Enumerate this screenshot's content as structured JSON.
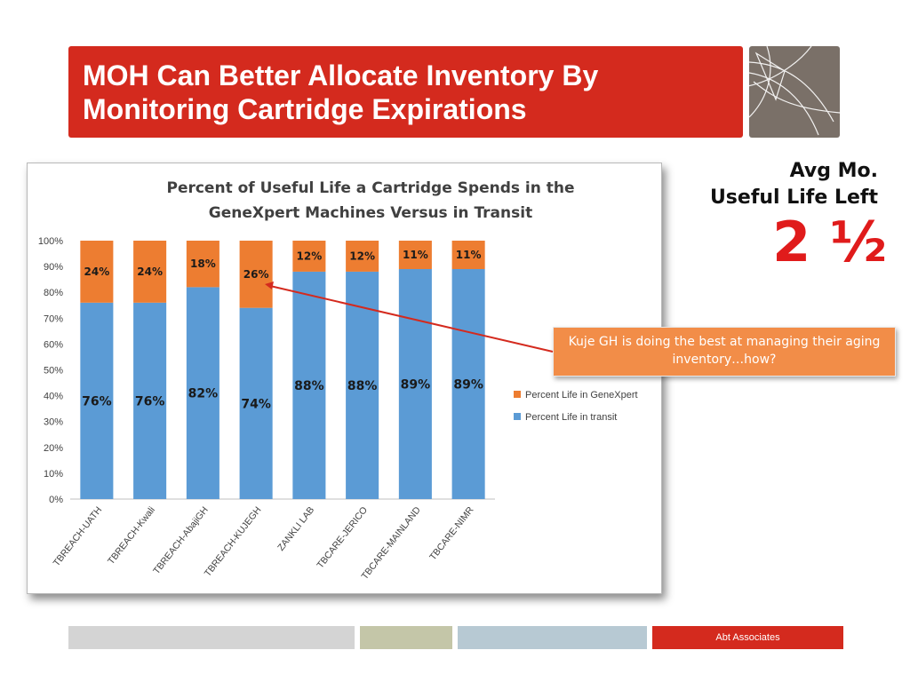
{
  "slide": {
    "title_line1": "MOH Can Better Allocate Inventory By",
    "title_line2": "Monitoring Cartridge Expirations",
    "side_label_line1": "Avg Mo.",
    "side_label_line2": "Useful Life Left",
    "big_value": "2 ½",
    "callout": "Kuje GH is doing the best at managing their aging inventory…how?",
    "footer_brand": "Abt Associates"
  },
  "colors": {
    "title_bg": "#d42a1e",
    "logo_bg": "#7a7068",
    "genexpert": "#ed7d31",
    "transit": "#5b9bd5",
    "big_value": "#e01b1b",
    "callout_bg": "#f28d48",
    "footer_gray": "#d4d4d4",
    "footer_olive": "#c4c6a8",
    "footer_blue": "#b7c9d3",
    "footer_red": "#d42a1e"
  },
  "chart_data": {
    "type": "bar",
    "stacked": true,
    "title_line1": "Percent of Useful Life a Cartridge Spends in the",
    "title_line2": "GeneXpert Machines Versus in Transit",
    "categories": [
      "TBREACH-UATH",
      "TBREACH-Kwali",
      "TBREACH-AbajiGH",
      "TBREACH-KUJEGH",
      "ZANKLI LAB",
      "TBCARE-JERICO",
      "TBCARE-MAINLAND",
      "TBCARE-NIMR"
    ],
    "series": [
      {
        "name": "Percent  Life in transit",
        "values": [
          76,
          76,
          82,
          74,
          88,
          88,
          89,
          89
        ],
        "labels": [
          "76%",
          "76%",
          "82%",
          "74%",
          "88%",
          "88%",
          "89%",
          "89%"
        ]
      },
      {
        "name": "Percent Life in GeneXpert",
        "values": [
          24,
          24,
          18,
          26,
          12,
          12,
          11,
          11
        ],
        "labels": [
          "24%",
          "24%",
          "18%",
          "26%",
          "12%",
          "12%",
          "11%",
          "11%"
        ]
      }
    ],
    "y_ticks": [
      "0%",
      "10%",
      "20%",
      "30%",
      "40%",
      "50%",
      "60%",
      "70%",
      "80%",
      "90%",
      "100%"
    ],
    "ylim": [
      0,
      100
    ],
    "grid": false,
    "legend_position": "right"
  }
}
